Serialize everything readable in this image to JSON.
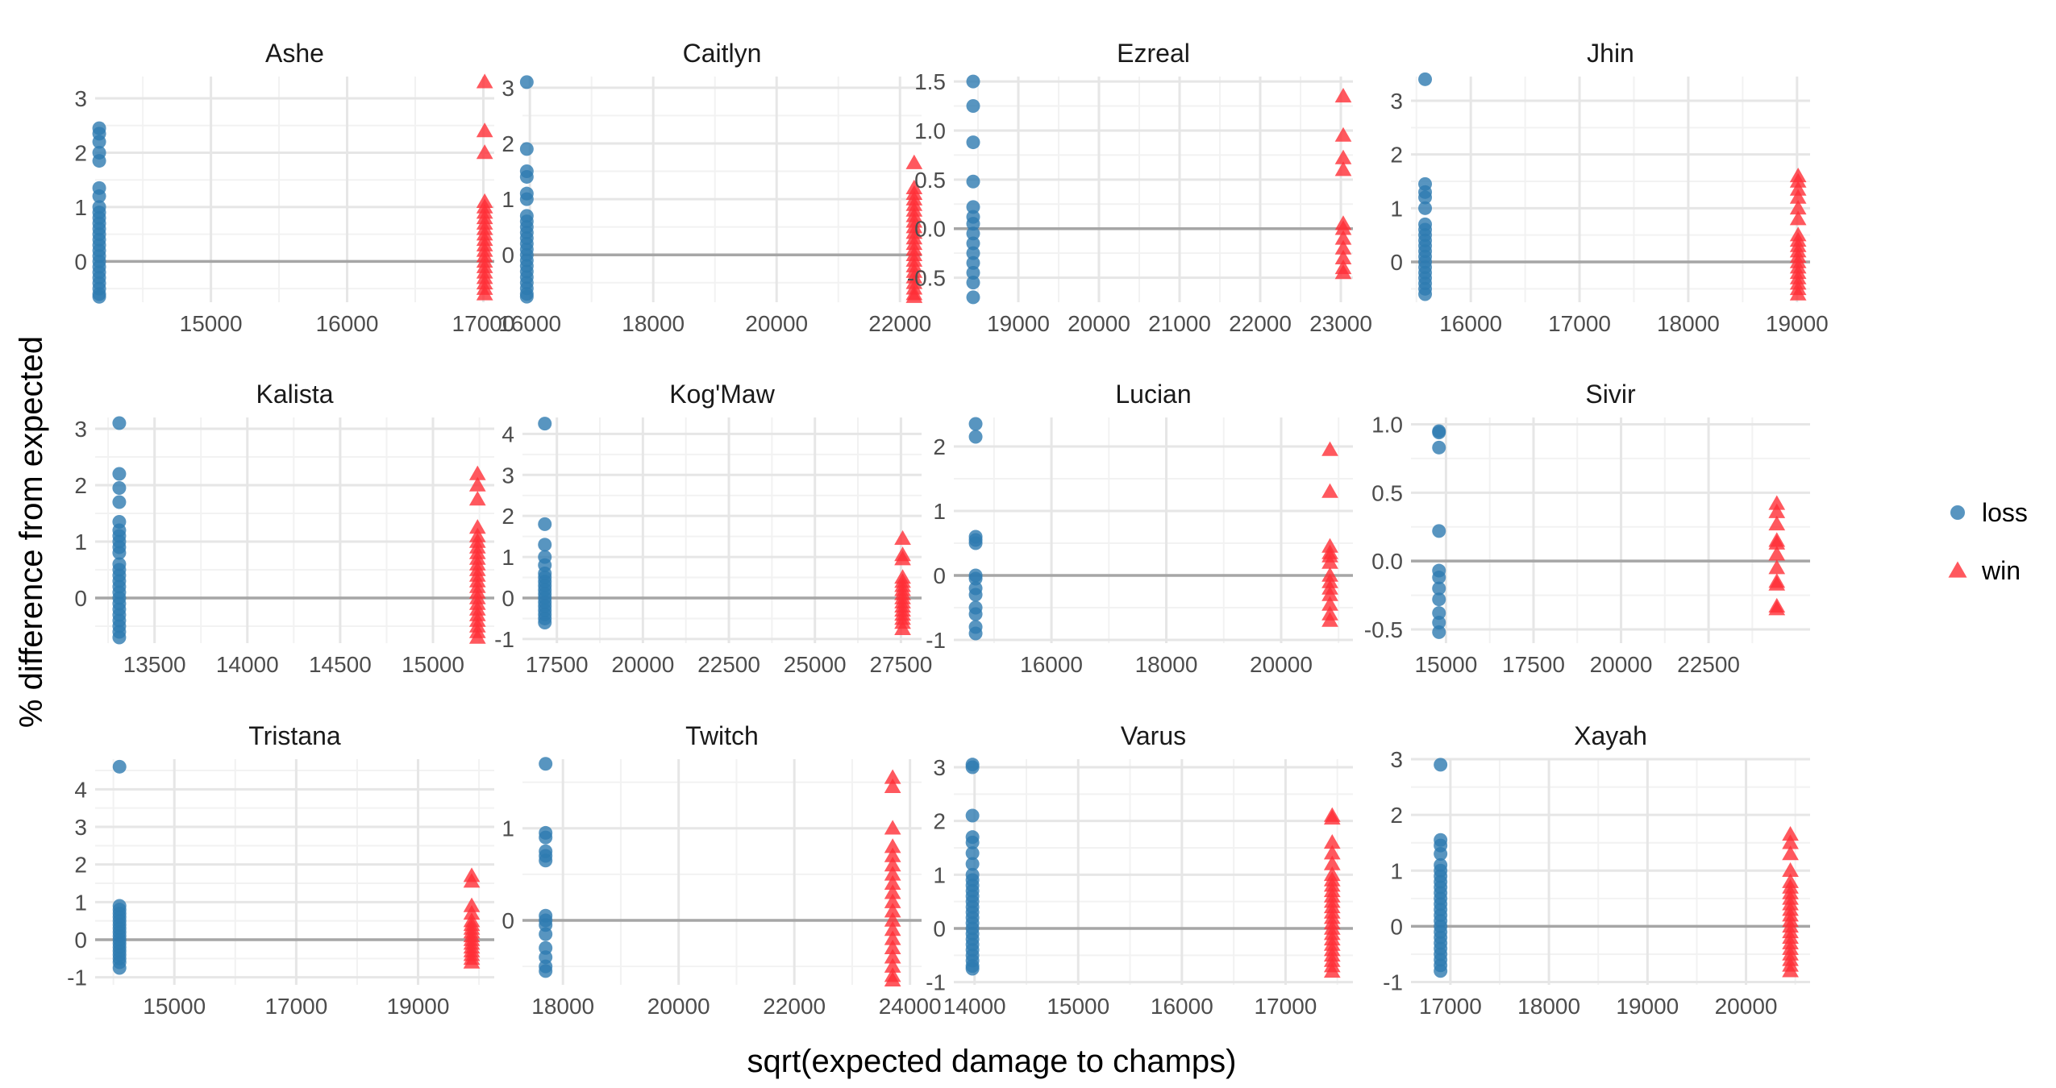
{
  "chart_data": {
    "type": "scatter",
    "xlabel": "sqrt(expected damage to champs)",
    "ylabel": "% difference from expected",
    "grid": true,
    "legend_position": "right",
    "reference_line_y": 0,
    "colors": {
      "loss": "#2e7bb0",
      "win": "#ff2e36",
      "reference_line": "#a6a6a6",
      "grid_major": "#e6e6e6",
      "grid_minor": "#f2f2f2"
    },
    "legend": [
      {
        "key": "loss",
        "label": "loss",
        "shape": "circle",
        "color": "#2e7bb0"
      },
      {
        "key": "win",
        "label": "win",
        "shape": "triangle",
        "color": "#ff2e36"
      }
    ],
    "panels": [
      {
        "title": "Ashe",
        "xlim": [
          14150,
          17080
        ],
        "ylim": [
          -0.75,
          3.4
        ],
        "xticks": [
          15000,
          16000,
          17000
        ],
        "xtick_labels": [
          "15000",
          "16000",
          "17000"
        ],
        "yticks": [
          0,
          1,
          2,
          3
        ],
        "ytick_labels": [
          "0",
          "1",
          "2",
          "3"
        ],
        "series": [
          {
            "name": "loss",
            "x": 14180,
            "y": [
              2.45,
              2.35,
              2.2,
              2.0,
              1.85,
              1.35,
              1.2,
              1.0,
              0.9,
              0.8,
              0.7,
              0.6,
              0.5,
              0.4,
              0.3,
              0.2,
              0.1,
              0.0,
              -0.1,
              -0.2,
              -0.3,
              -0.4,
              -0.5,
              -0.6,
              -0.65
            ]
          },
          {
            "name": "win",
            "x": 17010,
            "y": [
              3.3,
              2.4,
              2.0,
              1.1,
              1.0,
              0.9,
              0.8,
              0.7,
              0.6,
              0.5,
              0.4,
              0.3,
              0.2,
              0.1,
              0.0,
              -0.1,
              -0.2,
              -0.3,
              -0.4,
              -0.5,
              -0.6
            ]
          }
        ]
      },
      {
        "title": "Caitlyn",
        "xlim": [
          15880,
          22350
        ],
        "ylim": [
          -0.85,
          3.2
        ],
        "xticks": [
          16000,
          18000,
          20000,
          22000
        ],
        "xtick_labels": [
          "16000",
          "18000",
          "20000",
          "22000"
        ],
        "yticks": [
          0,
          1,
          2,
          3
        ],
        "ytick_labels": [
          "0",
          "1",
          "2",
          "3"
        ],
        "series": [
          {
            "name": "loss",
            "x": 15950,
            "y": [
              3.1,
              1.9,
              1.5,
              1.4,
              1.1,
              1.0,
              0.7,
              0.6,
              0.5,
              0.4,
              0.3,
              0.2,
              0.1,
              0.0,
              -0.1,
              -0.2,
              -0.3,
              -0.4,
              -0.5,
              -0.6,
              -0.7,
              -0.75
            ]
          },
          {
            "name": "win",
            "x": 22230,
            "y": [
              1.65,
              1.2,
              1.1,
              1.0,
              0.9,
              0.8,
              0.7,
              0.6,
              0.5,
              0.4,
              0.3,
              0.2,
              0.1,
              0.0,
              -0.1,
              -0.2,
              -0.3,
              -0.4,
              -0.5,
              -0.6,
              -0.7,
              -0.75
            ]
          }
        ]
      },
      {
        "title": "Ezreal",
        "xlim": [
          18200,
          23150
        ],
        "ylim": [
          -0.75,
          1.55
        ],
        "xticks": [
          19000,
          20000,
          21000,
          22000,
          23000
        ],
        "xtick_labels": [
          "19000",
          "20000",
          "21000",
          "22000",
          "23000"
        ],
        "yticks": [
          -0.5,
          0.0,
          0.5,
          1.0,
          1.5
        ],
        "ytick_labels": [
          "-0.5",
          "0.0",
          "0.5",
          "1.0",
          "1.5"
        ],
        "series": [
          {
            "name": "loss",
            "x": 18440,
            "y": [
              1.5,
              1.25,
              0.88,
              0.48,
              0.22,
              0.12,
              0.05,
              -0.05,
              -0.15,
              -0.25,
              -0.35,
              -0.45,
              -0.55,
              -0.7
            ]
          },
          {
            "name": "win",
            "x": 23030,
            "y": [
              1.35,
              0.95,
              0.72,
              0.6,
              0.05,
              0.0,
              -0.1,
              -0.2,
              -0.3,
              -0.4,
              -0.45
            ]
          }
        ]
      },
      {
        "title": "Jhin",
        "xlim": [
          15450,
          19120
        ],
        "ylim": [
          -0.75,
          3.45
        ],
        "xticks": [
          16000,
          17000,
          18000,
          19000
        ],
        "xtick_labels": [
          "16000",
          "17000",
          "18000",
          "19000"
        ],
        "yticks": [
          0,
          1,
          2,
          3
        ],
        "ytick_labels": [
          "0",
          "1",
          "2",
          "3"
        ],
        "series": [
          {
            "name": "loss",
            "x": 15580,
            "y": [
              3.4,
              1.45,
              1.3,
              1.2,
              1.0,
              0.7,
              0.6,
              0.5,
              0.4,
              0.3,
              0.2,
              0.1,
              0.0,
              -0.1,
              -0.2,
              -0.3,
              -0.4,
              -0.5,
              -0.6
            ]
          },
          {
            "name": "win",
            "x": 19010,
            "y": [
              1.6,
              1.5,
              1.35,
              1.2,
              1.0,
              0.8,
              0.5,
              0.4,
              0.3,
              0.2,
              0.1,
              0.0,
              -0.1,
              -0.2,
              -0.3,
              -0.4,
              -0.5,
              -0.6
            ]
          }
        ]
      },
      {
        "title": "Kalista",
        "xlim": [
          13180,
          15330
        ],
        "ylim": [
          -0.8,
          3.2
        ],
        "xticks": [
          13500,
          14000,
          14500,
          15000
        ],
        "xtick_labels": [
          "13500",
          "14000",
          "14500",
          "15000"
        ],
        "yticks": [
          0,
          1,
          2,
          3
        ],
        "ytick_labels": [
          "0",
          "1",
          "2",
          "3"
        ],
        "series": [
          {
            "name": "loss",
            "x": 13310,
            "y": [
              3.1,
              2.2,
              1.95,
              1.7,
              1.35,
              1.2,
              1.1,
              1.0,
              0.9,
              0.8,
              0.6,
              0.5,
              0.4,
              0.3,
              0.2,
              0.1,
              0.0,
              -0.1,
              -0.2,
              -0.3,
              -0.4,
              -0.5,
              -0.6,
              -0.7
            ]
          },
          {
            "name": "win",
            "x": 15240,
            "y": [
              2.2,
              2.0,
              1.75,
              1.25,
              1.1,
              1.0,
              0.9,
              0.8,
              0.7,
              0.6,
              0.5,
              0.4,
              0.3,
              0.2,
              0.1,
              0.0,
              -0.1,
              -0.2,
              -0.3,
              -0.4,
              -0.5,
              -0.6,
              -0.7
            ]
          }
        ]
      },
      {
        "title": "Kog'Maw",
        "xlim": [
          16500,
          28100
        ],
        "ylim": [
          -1.1,
          4.4
        ],
        "xticks": [
          17500,
          20000,
          22500,
          25000,
          27500
        ],
        "xtick_labels": [
          "17500",
          "20000",
          "22500",
          "25000",
          "27500"
        ],
        "yticks": [
          -1,
          0,
          1,
          2,
          3,
          4
        ],
        "ytick_labels": [
          "-1",
          "0",
          "1",
          "2",
          "3",
          "4"
        ],
        "series": [
          {
            "name": "loss",
            "x": 17150,
            "y": [
              4.25,
              1.8,
              1.3,
              1.0,
              0.8,
              0.6,
              0.5,
              0.4,
              0.3,
              0.2,
              0.1,
              0.0,
              -0.1,
              -0.2,
              -0.3,
              -0.4,
              -0.5,
              -0.6
            ]
          },
          {
            "name": "win",
            "x": 27550,
            "y": [
              1.45,
              1.05,
              0.95,
              0.5,
              0.4,
              0.3,
              0.2,
              0.1,
              0.0,
              -0.1,
              -0.2,
              -0.3,
              -0.4,
              -0.5,
              -0.6,
              -0.75
            ]
          }
        ]
      },
      {
        "title": "Lucian",
        "xlim": [
          14300,
          21250
        ],
        "ylim": [
          -1.05,
          2.45
        ],
        "xticks": [
          16000,
          18000,
          20000
        ],
        "xtick_labels": [
          "16000",
          "18000",
          "20000"
        ],
        "yticks": [
          -1,
          0,
          1,
          2
        ],
        "ytick_labels": [
          "-1",
          "0",
          "1",
          "2"
        ],
        "series": [
          {
            "name": "loss",
            "x": 14680,
            "y": [
              2.35,
              2.15,
              0.6,
              0.55,
              0.5,
              0.0,
              -0.05,
              -0.2,
              -0.3,
              -0.5,
              -0.6,
              -0.8,
              -0.9
            ]
          },
          {
            "name": "win",
            "x": 20850,
            "y": [
              1.95,
              1.3,
              0.45,
              0.35,
              0.3,
              0.2,
              0.0,
              -0.1,
              -0.2,
              -0.3,
              -0.45,
              -0.6,
              -0.7
            ]
          }
        ]
      },
      {
        "title": "Sivir",
        "xlim": [
          14000,
          25400
        ],
        "ylim": [
          -0.6,
          1.05
        ],
        "xticks": [
          15000,
          17500,
          20000,
          22500
        ],
        "xtick_labels": [
          "15000",
          "17500",
          "20000",
          "22500"
        ],
        "yticks": [
          -0.5,
          0.0,
          0.5,
          1.0
        ],
        "ytick_labels": [
          "-0.5",
          "0.0",
          "0.5",
          "1.0"
        ],
        "series": [
          {
            "name": "loss",
            "x": 14800,
            "y": [
              0.95,
              0.94,
              0.83,
              0.22,
              -0.07,
              -0.12,
              -0.2,
              -0.28,
              -0.38,
              -0.45,
              -0.52
            ]
          },
          {
            "name": "win",
            "x": 24450,
            "y": [
              0.42,
              0.36,
              0.27,
              0.15,
              0.13,
              0.05,
              -0.05,
              -0.15,
              -0.17,
              -0.33,
              -0.35
            ]
          }
        ]
      },
      {
        "title": "Tristana",
        "xlim": [
          13700,
          20250
        ],
        "ylim": [
          -1.2,
          4.8
        ],
        "xticks": [
          15000,
          17000,
          19000
        ],
        "xtick_labels": [
          "15000",
          "17000",
          "19000"
        ],
        "yticks": [
          -1,
          0,
          1,
          2,
          3,
          4
        ],
        "ytick_labels": [
          "-1",
          "0",
          "1",
          "2",
          "3",
          "4"
        ],
        "series": [
          {
            "name": "loss",
            "x": 14100,
            "y": [
              4.6,
              0.9,
              0.8,
              0.7,
              0.6,
              0.5,
              0.4,
              0.3,
              0.2,
              0.1,
              0.0,
              -0.1,
              -0.2,
              -0.3,
              -0.4,
              -0.5,
              -0.6,
              -0.75
            ]
          },
          {
            "name": "win",
            "x": 19880,
            "y": [
              1.7,
              1.55,
              0.9,
              0.7,
              0.5,
              0.4,
              0.3,
              0.2,
              0.1,
              0.0,
              -0.1,
              -0.2,
              -0.3,
              -0.4,
              -0.5,
              -0.6
            ]
          }
        ]
      },
      {
        "title": "Twitch",
        "xlim": [
          17300,
          24200
        ],
        "ylim": [
          -0.7,
          1.75
        ],
        "xticks": [
          18000,
          20000,
          22000,
          24000
        ],
        "xtick_labels": [
          "18000",
          "20000",
          "22000",
          "24000"
        ],
        "yticks": [
          0,
          1
        ],
        "ytick_labels": [
          "0",
          "1"
        ],
        "series": [
          {
            "name": "loss",
            "x": 17700,
            "y": [
              1.7,
              0.95,
              0.9,
              0.75,
              0.7,
              0.65,
              0.05,
              0.0,
              -0.05,
              -0.15,
              -0.3,
              -0.4,
              -0.5,
              -0.55
            ]
          },
          {
            "name": "win",
            "x": 23700,
            "y": [
              1.55,
              1.45,
              1.0,
              0.8,
              0.7,
              0.6,
              0.5,
              0.4,
              0.3,
              0.2,
              0.1,
              0.0,
              -0.1,
              -0.2,
              -0.3,
              -0.4,
              -0.5,
              -0.6,
              -0.65
            ]
          }
        ]
      },
      {
        "title": "Varus",
        "xlim": [
          13800,
          17650
        ],
        "ylim": [
          -1.05,
          3.15
        ],
        "xticks": [
          14000,
          15000,
          16000,
          17000
        ],
        "xtick_labels": [
          "14000",
          "15000",
          "16000",
          "17000"
        ],
        "yticks": [
          -1,
          0,
          1,
          2,
          3
        ],
        "ytick_labels": [
          "-1",
          "0",
          "1",
          "2",
          "3"
        ],
        "series": [
          {
            "name": "loss",
            "x": 13980,
            "y": [
              3.05,
              3.0,
              2.1,
              1.7,
              1.6,
              1.4,
              1.2,
              1.0,
              0.9,
              0.8,
              0.7,
              0.6,
              0.5,
              0.4,
              0.3,
              0.2,
              0.1,
              0.0,
              -0.1,
              -0.2,
              -0.3,
              -0.4,
              -0.5,
              -0.6,
              -0.7,
              -0.75
            ]
          },
          {
            "name": "win",
            "x": 17450,
            "y": [
              2.1,
              2.05,
              1.6,
              1.4,
              1.2,
              1.0,
              0.9,
              0.8,
              0.7,
              0.6,
              0.5,
              0.4,
              0.3,
              0.2,
              0.1,
              0.0,
              -0.1,
              -0.2,
              -0.3,
              -0.4,
              -0.5,
              -0.6,
              -0.7,
              -0.8
            ]
          }
        ]
      },
      {
        "title": "Xayah",
        "xlim": [
          16600,
          20650
        ],
        "ylim": [
          -1.05,
          3.0
        ],
        "xticks": [
          17000,
          18000,
          19000,
          20000
        ],
        "xtick_labels": [
          "17000",
          "18000",
          "19000",
          "20000"
        ],
        "yticks": [
          -1,
          0,
          1,
          2,
          3
        ],
        "ytick_labels": [
          "-1",
          "0",
          "1",
          "2",
          "3"
        ],
        "series": [
          {
            "name": "loss",
            "x": 16900,
            "y": [
              2.9,
              1.55,
              1.45,
              1.3,
              1.1,
              1.0,
              0.9,
              0.8,
              0.7,
              0.6,
              0.5,
              0.4,
              0.3,
              0.2,
              0.1,
              0.0,
              -0.1,
              -0.2,
              -0.3,
              -0.4,
              -0.5,
              -0.6,
              -0.7,
              -0.8
            ]
          },
          {
            "name": "win",
            "x": 20450,
            "y": [
              1.65,
              1.5,
              1.3,
              1.0,
              0.8,
              0.7,
              0.6,
              0.5,
              0.4,
              0.3,
              0.2,
              0.1,
              0.0,
              -0.1,
              -0.2,
              -0.3,
              -0.4,
              -0.5,
              -0.6,
              -0.7,
              -0.8
            ]
          }
        ]
      }
    ]
  }
}
